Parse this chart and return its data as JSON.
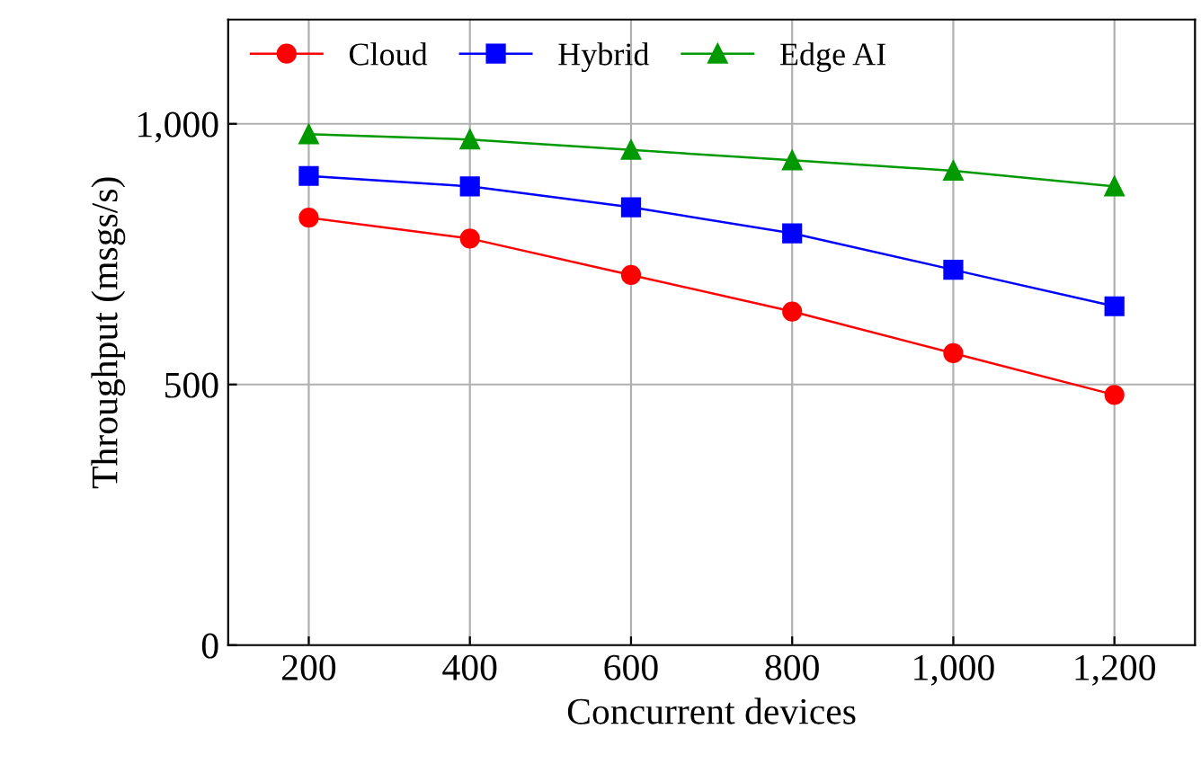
{
  "chart_data": {
    "type": "line",
    "xlabel": "Concurrent devices",
    "ylabel": "Throughput (msgs/s)",
    "x": [
      200,
      400,
      600,
      800,
      1000,
      1200
    ],
    "series": [
      {
        "name": "Cloud",
        "color": "#ff0000",
        "marker": "circle",
        "values": [
          820,
          780,
          710,
          640,
          560,
          480
        ]
      },
      {
        "name": "Hybrid",
        "color": "#0000ff",
        "marker": "square",
        "values": [
          900,
          880,
          840,
          790,
          720,
          650
        ]
      },
      {
        "name": "Edge AI",
        "color": "#009900",
        "marker": "triangle",
        "values": [
          980,
          970,
          950,
          930,
          910,
          880
        ]
      }
    ],
    "xlim": [
      100,
      1300
    ],
    "xticks": [
      200,
      400,
      600,
      800,
      {
        "value": 1000,
        "label": "1,000"
      },
      {
        "value": 1200,
        "label": "1,200"
      }
    ],
    "ylim": [
      0,
      1200
    ],
    "yticks": [
      0,
      500,
      {
        "value": 1000,
        "label": "1,000"
      }
    ],
    "grid": true,
    "legend": "top left",
    "line_style": "solid"
  }
}
